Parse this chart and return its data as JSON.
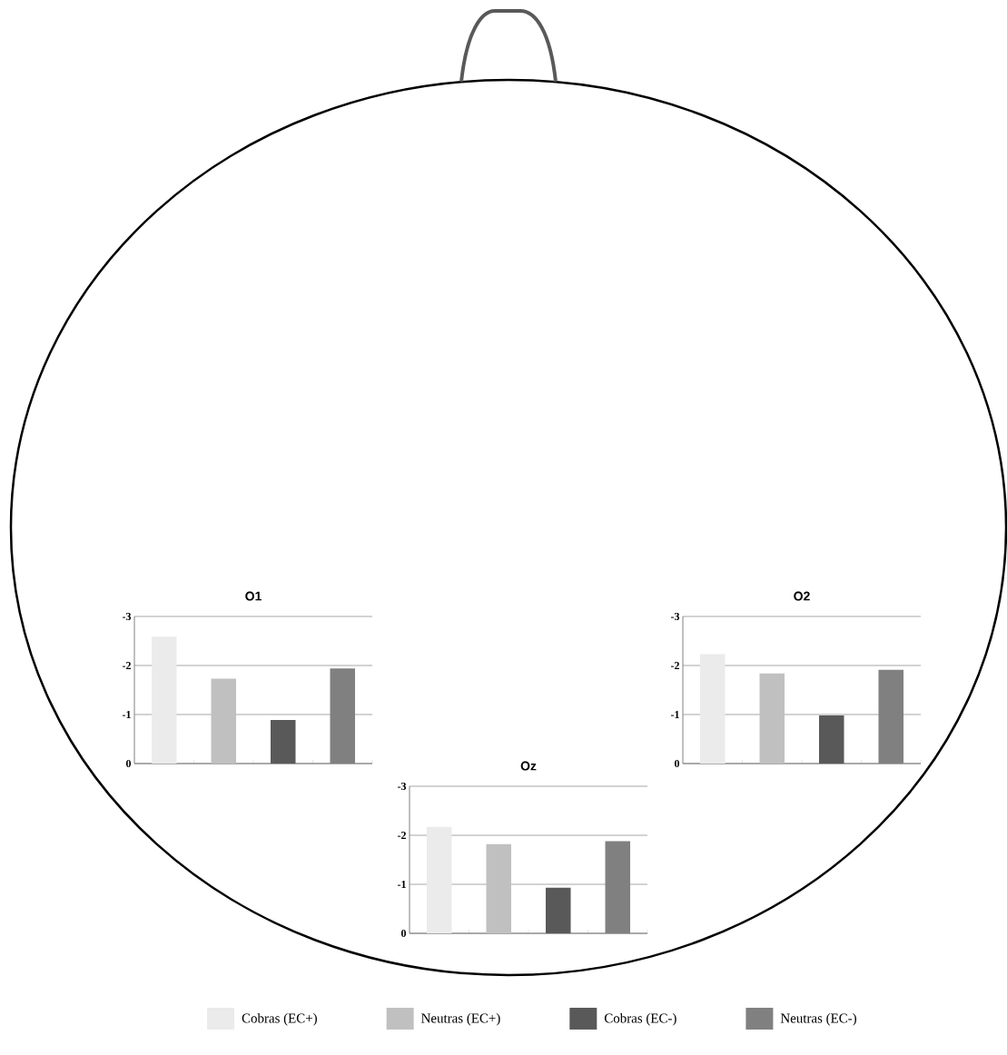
{
  "chart_data": [
    {
      "type": "bar",
      "title": "O1",
      "categories": [
        null,
        null,
        null,
        null
      ],
      "ylim": [
        0,
        -3
      ],
      "yticks": [
        -3,
        -2,
        -1,
        0
      ],
      "grid": "y",
      "series": [
        {
          "color": "#ebebeb",
          "values": [
            -2.59,
            null,
            null,
            null
          ]
        },
        {
          "color": "#c0c0c0",
          "values": [
            null,
            -1.73,
            null,
            null
          ]
        },
        {
          "color": "#595959",
          "values": [
            null,
            null,
            -0.89,
            null
          ]
        },
        {
          "color": "#808080",
          "values": [
            null,
            null,
            null,
            -1.94
          ]
        }
      ]
    },
    {
      "type": "bar",
      "title": "O2",
      "categories": [
        null,
        null,
        null,
        null
      ],
      "ylim": [
        0,
        -3
      ],
      "yticks": [
        -3,
        -2,
        -1,
        0
      ],
      "grid": "y",
      "series": [
        {
          "color": "#ebebeb",
          "values": [
            -2.23,
            null,
            null,
            null
          ]
        },
        {
          "color": "#c0c0c0",
          "values": [
            null,
            -1.84,
            null,
            null
          ]
        },
        {
          "color": "#595959",
          "values": [
            null,
            null,
            -0.98,
            null
          ]
        },
        {
          "color": "#808080",
          "values": [
            null,
            null,
            null,
            -1.91
          ]
        }
      ]
    },
    {
      "type": "bar",
      "title": "Oz",
      "categories": [
        null,
        null,
        null,
        null
      ],
      "ylim": [
        0,
        -3
      ],
      "yticks": [
        -3,
        -2,
        -1,
        0
      ],
      "grid": "y",
      "legend": "bottom",
      "series": [
        {
          "name": "Cobras  (EC+)",
          "color": "#ebebeb",
          "values": [
            -2.17,
            null,
            null,
            null
          ]
        },
        {
          "name": "Neutras  (EC+)",
          "color": "#c0c0c0",
          "values": [
            null,
            -1.82,
            null,
            null
          ]
        },
        {
          "name": "Cobras  (EC-)",
          "color": "#595959",
          "values": [
            null,
            null,
            -0.93,
            null
          ]
        },
        {
          "name": "Neutras  (EC-)",
          "color": "#808080",
          "values": [
            null,
            null,
            null,
            -1.88
          ]
        }
      ]
    }
  ]
}
